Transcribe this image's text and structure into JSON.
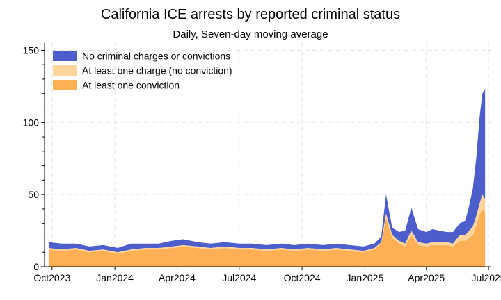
{
  "chart_data": {
    "type": "area",
    "title": "California ICE arrests by reported criminal status",
    "subtitle": "Daily, Seven-day moving average",
    "xlabel": "",
    "ylabel": "",
    "ylim": [
      0,
      155
    ],
    "yticks": [
      0,
      50,
      100,
      150
    ],
    "xlim": [
      "2023-09-20",
      "2025-07-05"
    ],
    "xticks": [
      {
        "date": "2023-10-01",
        "label": "Oct2023"
      },
      {
        "date": "2024-01-01",
        "label": "Jan2024"
      },
      {
        "date": "2024-04-01",
        "label": "Apr2024"
      },
      {
        "date": "2024-07-01",
        "label": "Jul2024"
      },
      {
        "date": "2024-10-01",
        "label": "Oct2024"
      },
      {
        "date": "2025-01-01",
        "label": "Jan2025"
      },
      {
        "date": "2025-04-01",
        "label": "Apr2025"
      },
      {
        "date": "2025-07-01",
        "label": "Jul2025"
      }
    ],
    "grid": true,
    "stacked": true,
    "legend_position": "top-left",
    "colors": {
      "no_criminal": "#4c5dcc",
      "charge": "#ffd59b",
      "conviction": "#ffb055"
    },
    "x": [
      "2023-09-26",
      "2023-10-15",
      "2023-11-05",
      "2023-11-25",
      "2023-12-15",
      "2024-01-05",
      "2024-01-25",
      "2024-02-15",
      "2024-03-05",
      "2024-03-25",
      "2024-04-10",
      "2024-05-01",
      "2024-05-20",
      "2024-06-10",
      "2024-07-01",
      "2024-07-20",
      "2024-08-10",
      "2024-09-01",
      "2024-09-20",
      "2024-10-10",
      "2024-11-01",
      "2024-11-20",
      "2024-12-10",
      "2024-12-30",
      "2025-01-15",
      "2025-01-25",
      "2025-02-01",
      "2025-02-10",
      "2025-02-20",
      "2025-03-01",
      "2025-03-10",
      "2025-03-20",
      "2025-04-01",
      "2025-04-10",
      "2025-04-20",
      "2025-05-01",
      "2025-05-10",
      "2025-05-20",
      "2025-05-28",
      "2025-06-03",
      "2025-06-08",
      "2025-06-13",
      "2025-06-18",
      "2025-06-22",
      "2025-06-26"
    ],
    "series": [
      {
        "name": "At least one conviction",
        "key": "conviction",
        "values": [
          12,
          11,
          12,
          10,
          11,
          9,
          11,
          12,
          12,
          13,
          14,
          13,
          12,
          13,
          12,
          12,
          11,
          12,
          11,
          12,
          11,
          12,
          11,
          10,
          12,
          16,
          34,
          20,
          16,
          14,
          22,
          15,
          14,
          15,
          15,
          15,
          14,
          18,
          18,
          20,
          22,
          28,
          36,
          40,
          38
        ]
      },
      {
        "name": "At least one charge (no conviction)",
        "key": "charge",
        "values": [
          1,
          1,
          1,
          1,
          1,
          1,
          1,
          1,
          1,
          1,
          1,
          1,
          1,
          1,
          1,
          1,
          1,
          1,
          1,
          1,
          1,
          1,
          1,
          1,
          1,
          1,
          3,
          2,
          2,
          2,
          3,
          2,
          2,
          2,
          2,
          2,
          2,
          4,
          4,
          5,
          6,
          7,
          8,
          10,
          9
        ]
      },
      {
        "name": "No criminal charges or convictions",
        "key": "no_criminal",
        "values": [
          4,
          4,
          3,
          3,
          3,
          3,
          4,
          3,
          3,
          4,
          4,
          3,
          3,
          3,
          3,
          3,
          3,
          3,
          3,
          3,
          3,
          3,
          3,
          3,
          3,
          4,
          13,
          5,
          6,
          9,
          16,
          9,
          8,
          9,
          8,
          7,
          8,
          8,
          10,
          18,
          26,
          40,
          60,
          70,
          76
        ]
      }
    ]
  }
}
